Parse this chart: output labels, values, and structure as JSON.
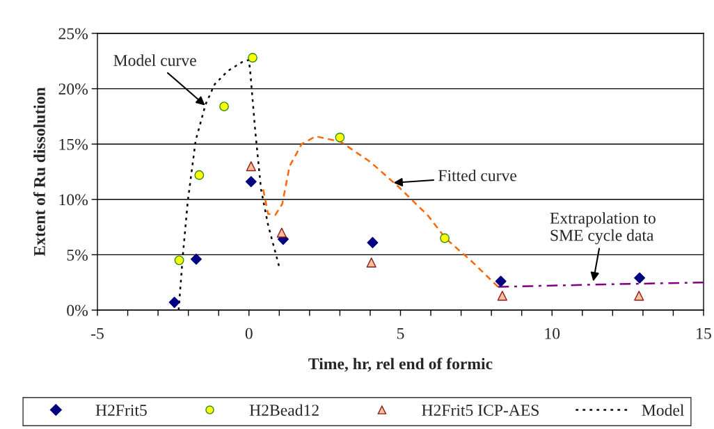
{
  "chart_data": {
    "type": "scatter",
    "xlabel": "Time, hr, rel end of formic",
    "ylabel": "Extent of Ru dissolution",
    "xlim": [
      -5,
      15
    ],
    "ylim": [
      0,
      25
    ],
    "xticks": [
      -5,
      {
        "value": -4,
        "label": null
      },
      {
        "value": -3,
        "label": null
      },
      {
        "value": -2,
        "label": null
      },
      {
        "value": -1,
        "label": null
      },
      0,
      {
        "value": 1,
        "label": null
      },
      {
        "value": 2,
        "label": null
      },
      {
        "value": 3,
        "label": null
      },
      {
        "value": 4,
        "label": null
      },
      5,
      {
        "value": 6,
        "label": null
      },
      {
        "value": 7,
        "label": null
      },
      {
        "value": 8,
        "label": null
      },
      {
        "value": 9,
        "label": null
      },
      10,
      {
        "value": 11,
        "label": null
      },
      {
        "value": 12,
        "label": null
      },
      {
        "value": 13,
        "label": null
      },
      {
        "value": 14,
        "label": null
      },
      15
    ],
    "yticks": [
      {
        "value": 0,
        "label": "0%"
      },
      {
        "value": 5,
        "label": "5%"
      },
      {
        "value": 10,
        "label": "10%"
      },
      {
        "value": 15,
        "label": "15%"
      },
      {
        "value": 20,
        "label": "20%"
      },
      {
        "value": 25,
        "label": "25%"
      }
    ],
    "grid": "y",
    "legend": "bottom",
    "series": [
      {
        "name": "H2Frit5",
        "marker": "diamond",
        "color": "#000080",
        "x": [
          -2.46,
          -1.74,
          0.07,
          1.13,
          4.08,
          8.31,
          12.89
        ],
        "values": [
          0.7,
          4.6,
          11.6,
          6.4,
          6.1,
          2.6,
          2.9
        ]
      },
      {
        "name": "H2Bead12",
        "marker": "circle",
        "color": "#ffff00",
        "x": [
          -2.3,
          -1.64,
          -0.82,
          0.12,
          3.0,
          6.46
        ],
        "values": [
          4.5,
          12.2,
          18.4,
          22.8,
          15.6,
          6.5
        ]
      },
      {
        "name": "H2Frit5 ICP-AES",
        "marker": "triangle",
        "color": "#f9c09a",
        "x": [
          0.07,
          1.08,
          4.04,
          8.36,
          12.87
        ],
        "values": [
          13.0,
          7.0,
          4.3,
          1.3,
          1.3
        ]
      },
      {
        "name": "Model",
        "type": "line",
        "line_style": "dotted",
        "color": "#000000",
        "x": [
          -2.32,
          -2.18,
          -2.02,
          -1.76,
          -1.43,
          -1.13,
          -0.7,
          -0.23,
          0.0,
          0.05,
          0.21,
          0.4,
          0.63,
          0.99
        ],
        "values": [
          0,
          5.0,
          9.8,
          15.3,
          18.6,
          20.4,
          21.6,
          22.4,
          22.6,
          21.3,
          16.1,
          10.9,
          7.7,
          4.0
        ]
      },
      {
        "type": "line",
        "line_style": "dashed",
        "color": "#ff6600",
        "x": [
          0.47,
          0.63,
          0.87,
          1.1,
          1.34,
          1.74,
          2.2,
          2.37,
          3.03,
          4.0,
          4.95,
          5.92,
          6.48,
          7.35,
          8.22
        ],
        "values": [
          10.9,
          8.7,
          8.6,
          9.6,
          13.0,
          15.0,
          15.7,
          15.6,
          15.2,
          13.4,
          11.1,
          8.5,
          6.5,
          4.4,
          2.1
        ]
      },
      {
        "type": "line",
        "line_style": "dashdot",
        "color": "#800080",
        "x": [
          8.22,
          11.36,
          15.0
        ],
        "values": [
          2.1,
          2.3,
          2.5
        ]
      }
    ],
    "annotations": [
      {
        "text": "Model curve",
        "x": -1.45,
        "y": 18.5
      },
      {
        "text": "Fitted curve",
        "x": 4.77,
        "y": 11.5
      },
      {
        "text": "Extrapolation to\nSME cycle data",
        "x": 11.36,
        "y": 2.6
      }
    ]
  }
}
